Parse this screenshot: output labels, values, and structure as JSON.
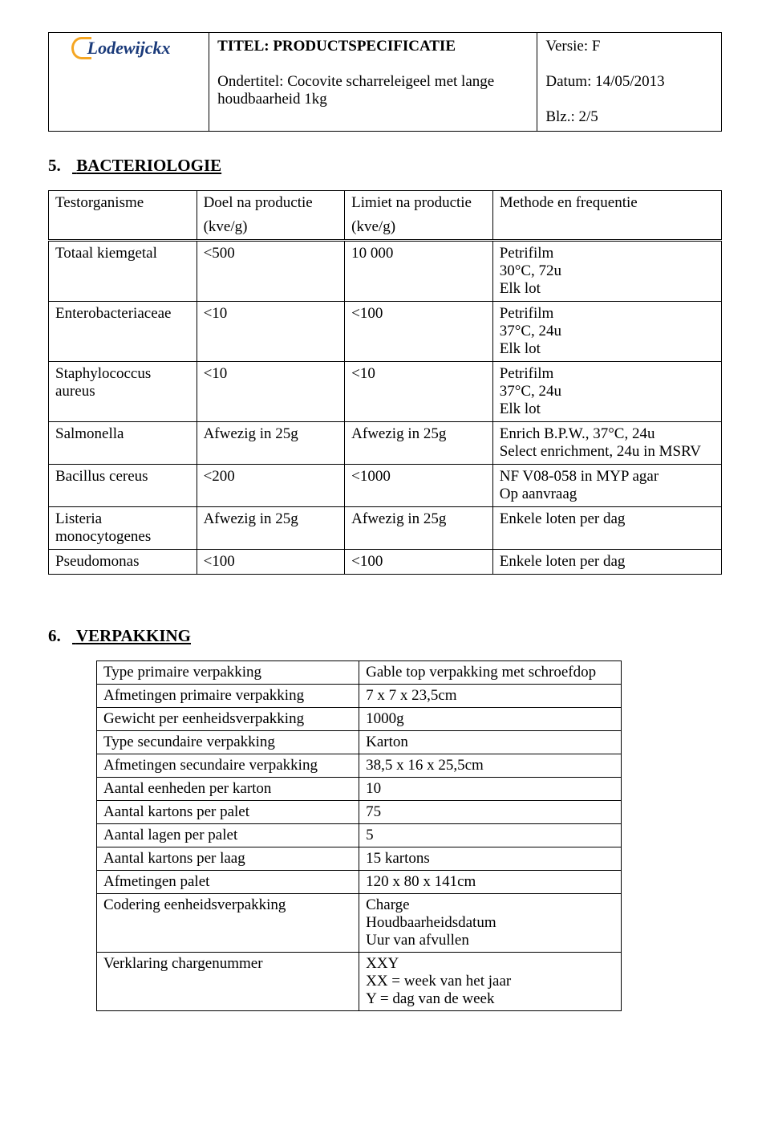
{
  "header": {
    "logo_text": "Lodewijckx",
    "title_label": "TITEL: PRODUCTSPECIFICATIE",
    "subtitle_label": "Ondertitel: Cocovite scharreleigeel met lange houdbaarheid 1kg",
    "version_label": "Versie: F",
    "date_label": "Datum: 14/05/2013",
    "page_label": "Blz.: 2/5"
  },
  "section5": {
    "number": "5.",
    "title": "BACTERIOLOGIE",
    "columns": {
      "c1": "Testorganisme",
      "c2a": "Doel na productie",
      "c2b": "(kve/g)",
      "c3a": "Limiet na productie",
      "c3b": "(kve/g)",
      "c4": "Methode en frequentie"
    },
    "rows": [
      {
        "org": "Totaal kiemgetal",
        "doel": "<500",
        "limiet": "10 000",
        "meth": "Petrifilm\n30°C, 72u\nElk lot"
      },
      {
        "org": "Enterobacteriaceae",
        "doel": "<10",
        "limiet": "<100",
        "meth": "Petrifilm\n37°C, 24u\nElk lot"
      },
      {
        "org": "Staphylococcus aureus",
        "doel": "<10",
        "limiet": "<10",
        "meth": "Petrifilm\n37°C, 24u\nElk lot"
      },
      {
        "org": "Salmonella",
        "doel": "Afwezig in 25g",
        "limiet": "Afwezig in 25g",
        "meth": "Enrich B.P.W., 37°C, 24u\nSelect enrichment, 24u in MSRV"
      },
      {
        "org": "Bacillus cereus",
        "doel": "<200",
        "limiet": "<1000",
        "meth": "NF V08-058 in MYP agar\nOp aanvraag"
      },
      {
        "org": "Listeria monocytogenes",
        "doel": "Afwezig in 25g",
        "limiet": "Afwezig in 25g",
        "meth": "Enkele loten per dag"
      },
      {
        "org": "Pseudomonas",
        "doel": "<100",
        "limiet": "<100",
        "meth": "Enkele loten per dag"
      }
    ]
  },
  "section6": {
    "number": "6.",
    "title": "VERPAKKING",
    "rows": [
      {
        "k": "Type primaire verpakking",
        "v": "Gable top verpakking met schroefdop"
      },
      {
        "k": "Afmetingen primaire verpakking",
        "v": "7 x 7 x 23,5cm"
      },
      {
        "k": "Gewicht per eenheidsverpakking",
        "v": "1000g"
      },
      {
        "k": "Type secundaire verpakking",
        "v": "Karton"
      },
      {
        "k": "Afmetingen secundaire verpakking",
        "v": "38,5 x 16 x 25,5cm"
      },
      {
        "k": "Aantal eenheden per karton",
        "v": "10"
      },
      {
        "k": "Aantal kartons per palet",
        "v": "75"
      },
      {
        "k": "Aantal lagen per palet",
        "v": "5"
      },
      {
        "k": "Aantal kartons per laag",
        "v": "15 kartons"
      },
      {
        "k": "Afmetingen palet",
        "v": "120 x 80 x 141cm"
      },
      {
        "k": "Codering eenheidsverpakking",
        "v": "Charge\nHoudbaarheidsdatum\nUur van afvullen"
      },
      {
        "k": "Verklaring chargenummer",
        "v": "XXY\nXX = week van het jaar\nY = dag van de week"
      }
    ]
  }
}
